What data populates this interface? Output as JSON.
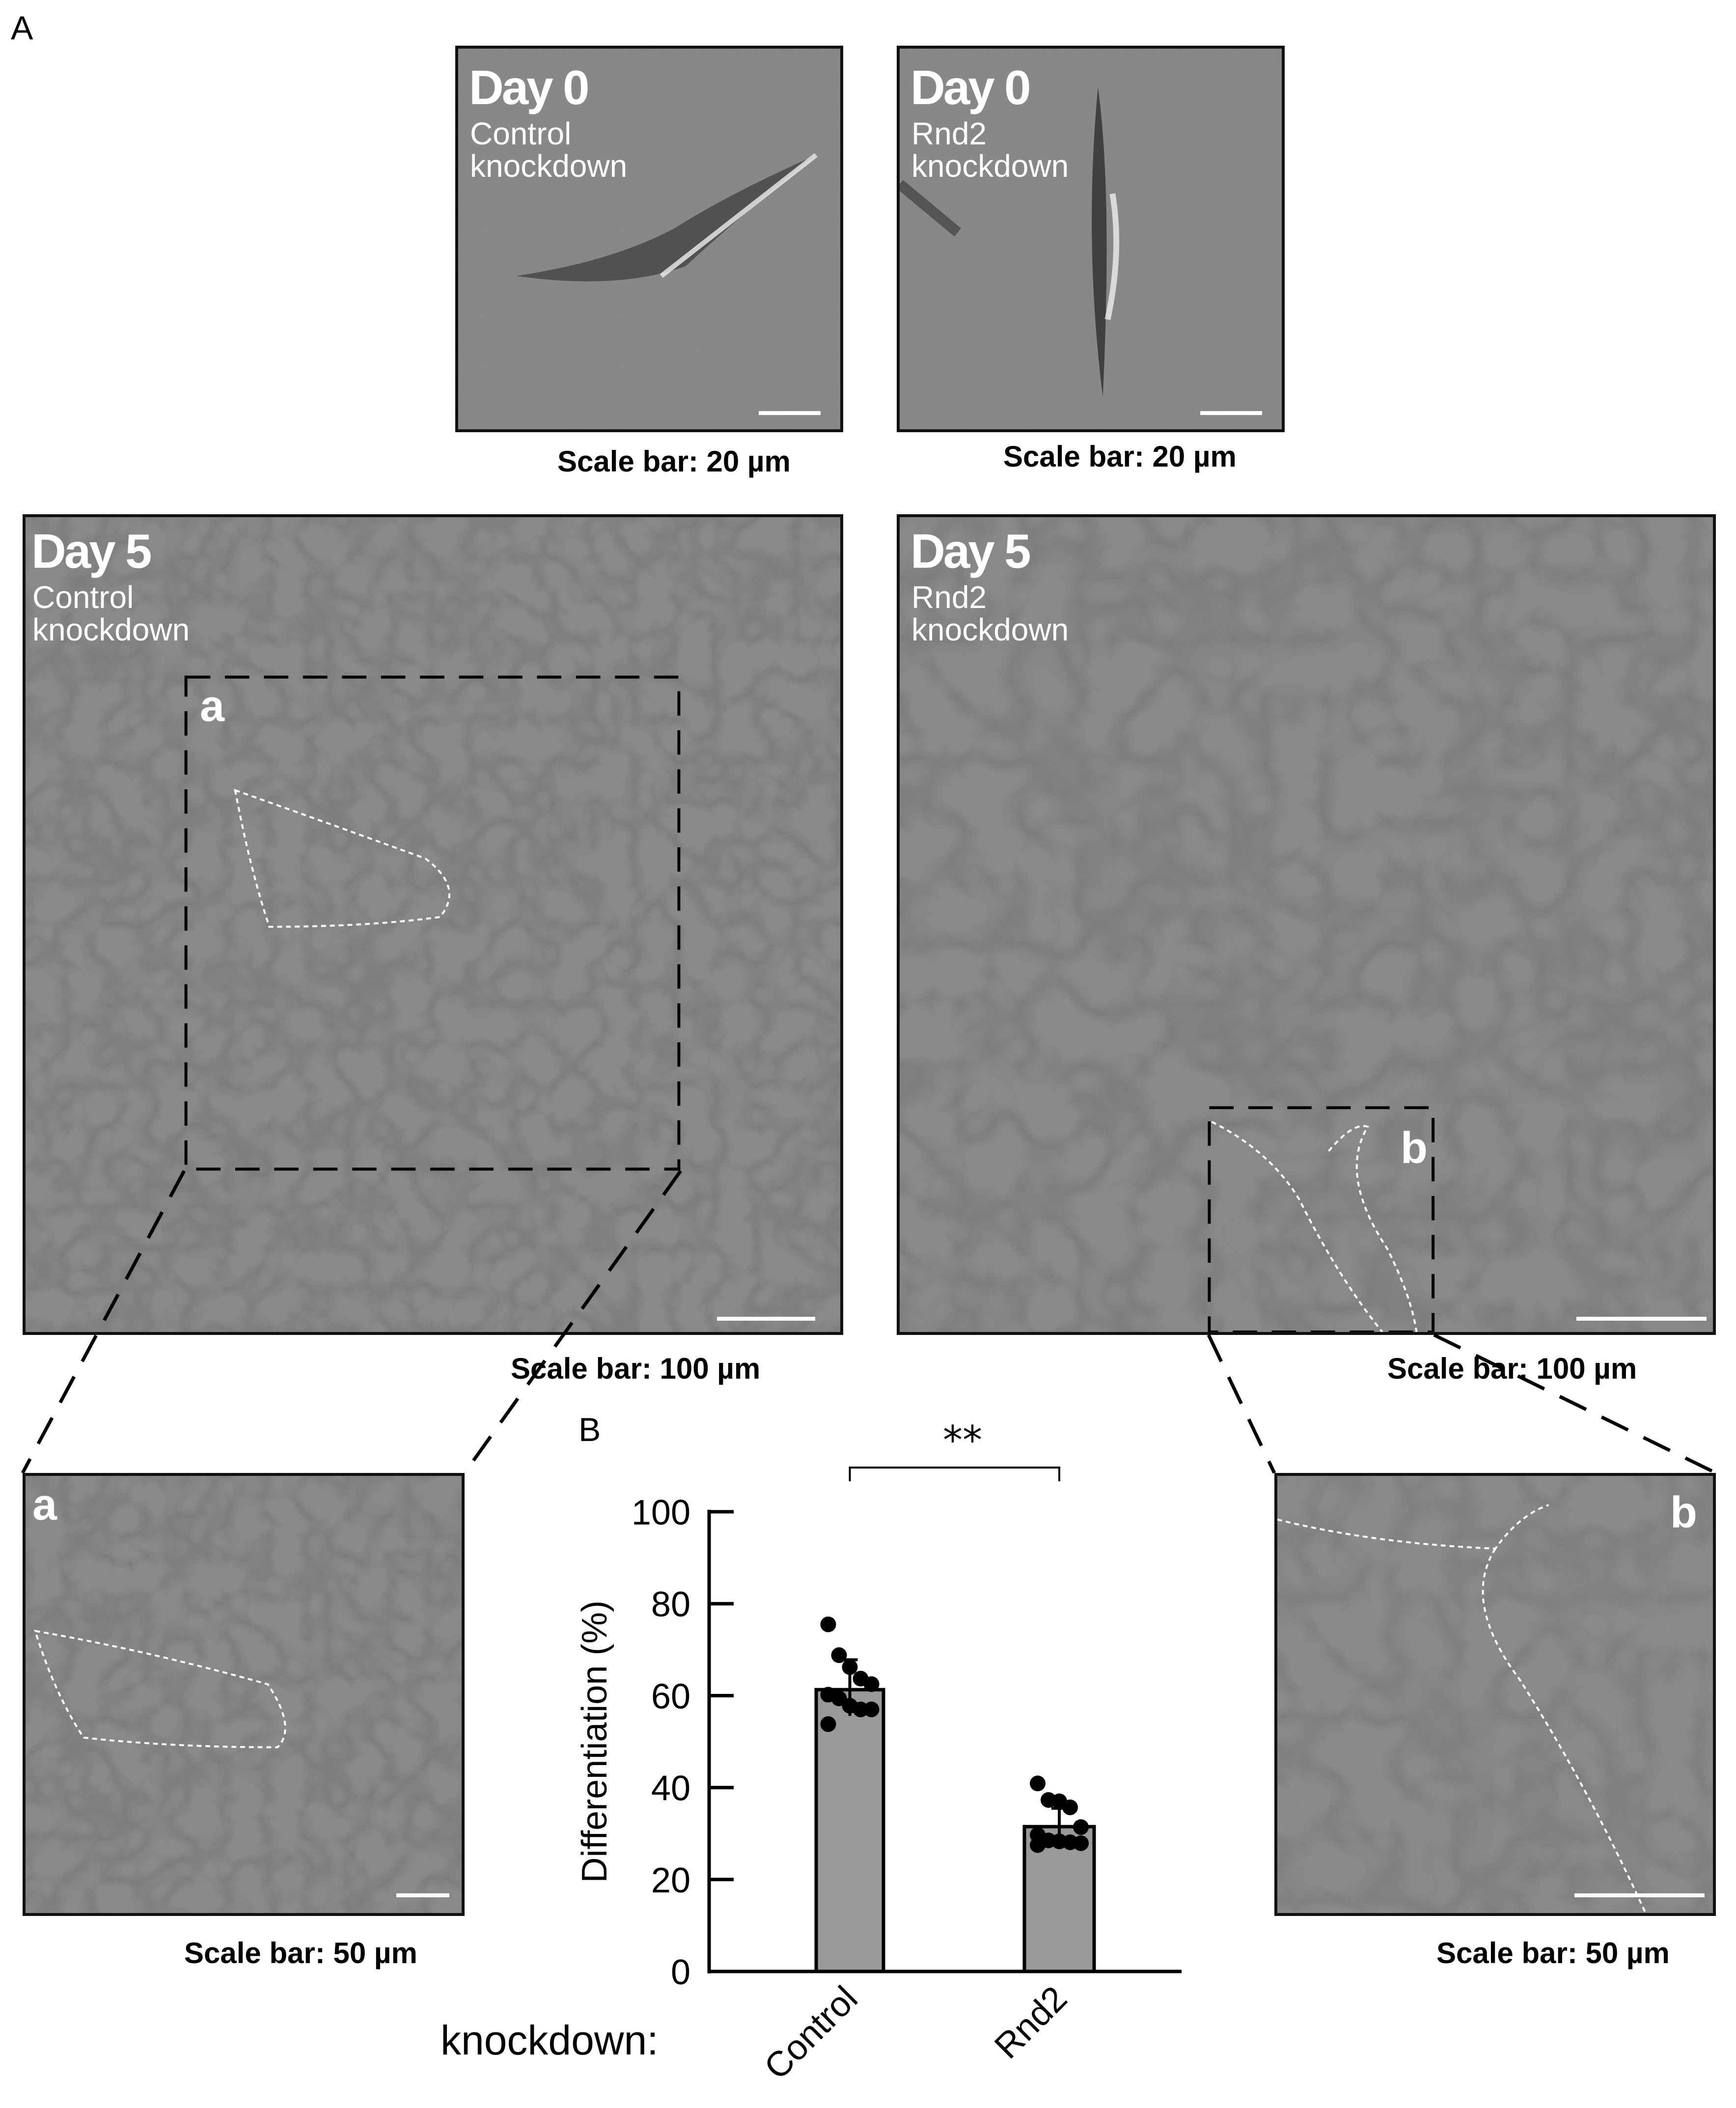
{
  "figure": {
    "panel_a_label": "A",
    "panel_b_label": "B",
    "day0_control": {
      "day": "Day 0",
      "condition_line1": "Control",
      "condition_line2": "knockdown",
      "scale": "Scale bar: 20 µm"
    },
    "day0_rnd2": {
      "day": "Day 0",
      "condition_line1": "Rnd2",
      "condition_line2": "knockdown",
      "scale": "Scale bar: 20 µm"
    },
    "day5_control": {
      "day": "Day 5",
      "condition_line1": "Control",
      "condition_line2": "knockdown",
      "scale": "Scale bar: 100 µm",
      "inset_label": "a"
    },
    "day5_rnd2": {
      "day": "Day 5",
      "condition_line1": "Rnd2",
      "condition_line2": "knockdown",
      "scale": "Scale bar: 100 µm",
      "inset_label": "b"
    },
    "inset_a": {
      "label": "a",
      "scale": "Scale bar: 50 µm"
    },
    "inset_b": {
      "label": "b",
      "scale": "Scale bar: 50 µm"
    }
  },
  "chart_data": {
    "type": "bar",
    "categories": [
      "Control",
      "Rnd2"
    ],
    "category_axis_prefix": "knockdown:",
    "values": [
      61.3,
      31.5
    ],
    "error_upper": [
      67.8,
      35.5
    ],
    "error_lower": [
      55.6,
      27.5
    ],
    "points": [
      [
        75.5,
        68.8,
        66.2,
        63.7,
        62.5,
        60.2,
        59.4,
        57.8,
        57.0,
        57.0,
        53.8
      ],
      [
        40.9,
        37.3,
        37.0,
        35.7,
        31.4,
        29.7,
        28.5,
        28.3,
        28.1,
        27.9,
        27.5
      ]
    ],
    "ylabel": "Differentiation (%)",
    "ylim": [
      0,
      100
    ],
    "yticks": [
      "0",
      "20",
      "40",
      "60",
      "80",
      "100"
    ],
    "significance": "**",
    "bar_color": "#999999",
    "grid": false
  }
}
